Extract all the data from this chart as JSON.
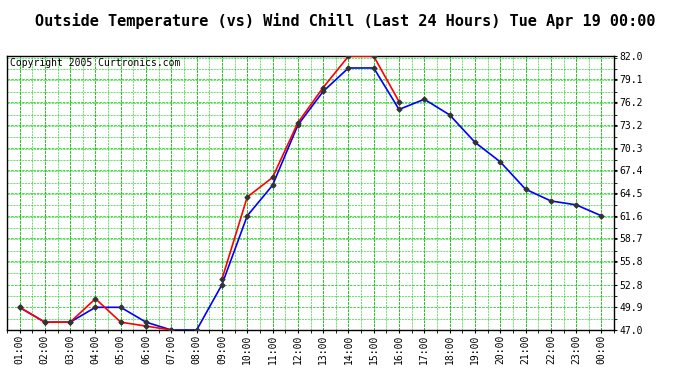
{
  "title": "Outside Temperature (vs) Wind Chill (Last 24 Hours) Tue Apr 19 00:00",
  "copyright": "Copyright 2005 Curtronics.com",
  "x_labels": [
    "01:00",
    "02:00",
    "03:00",
    "04:00",
    "05:00",
    "06:00",
    "07:00",
    "08:00",
    "09:00",
    "10:00",
    "11:00",
    "12:00",
    "13:00",
    "14:00",
    "15:00",
    "16:00",
    "17:00",
    "18:00",
    "19:00",
    "20:00",
    "21:00",
    "22:00",
    "23:00",
    "00:00"
  ],
  "y_ticks": [
    47.0,
    49.9,
    52.8,
    55.8,
    58.7,
    61.6,
    64.5,
    67.4,
    70.3,
    73.2,
    76.2,
    79.1,
    82.0
  ],
  "ylim": [
    47.0,
    82.0
  ],
  "blue_line": [
    49.9,
    48.0,
    48.0,
    49.9,
    49.9,
    48.0,
    47.0,
    47.0,
    52.8,
    61.6,
    65.5,
    73.2,
    77.5,
    80.5,
    80.5,
    75.2,
    76.5,
    74.5,
    71.0,
    68.5,
    65.0,
    63.5,
    63.0,
    61.6
  ],
  "red_line": [
    49.9,
    48.0,
    48.0,
    51.0,
    48.0,
    47.5,
    47.0,
    null,
    53.5,
    64.0,
    66.5,
    73.5,
    78.0,
    82.0,
    82.0,
    76.2,
    null,
    null,
    null,
    null,
    null,
    null,
    null,
    null
  ],
  "blue_color": "#0000ff",
  "red_color": "#ff0000",
  "bg_color": "#ffffff",
  "grid_color": "#00cc00",
  "title_fontsize": 11,
  "copyright_fontsize": 7,
  "ylabel_fontsize": 7,
  "xlabel_fontsize": 7
}
